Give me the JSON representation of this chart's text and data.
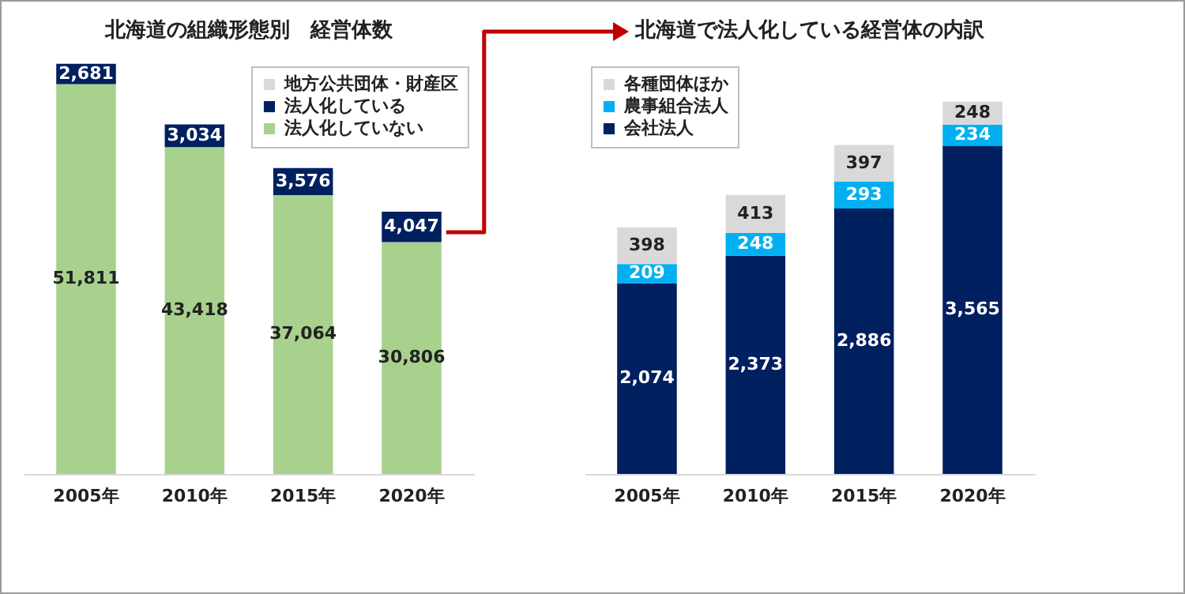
{
  "chart_data": [
    {
      "type": "bar",
      "title": "北海道の組織形態別　経営体数",
      "categories": [
        "2005年",
        "2010年",
        "2015年",
        "2020年"
      ],
      "stacked": true,
      "legend": "top right",
      "series": [
        {
          "name": "法人化していない",
          "color": "#a9d18e",
          "values": [
            51811,
            43418,
            37064,
            30806
          ],
          "value_labels": [
            "51,811",
            "43,418",
            "37,064",
            "30,806"
          ]
        },
        {
          "name": "法人化している",
          "color": "#002060",
          "values": [
            2681,
            3034,
            3576,
            4047
          ],
          "value_labels": [
            "2,681",
            "3,034",
            "3,576",
            "4,047"
          ]
        },
        {
          "name": "地方公共団体・財産区",
          "color": "#d9d9d9",
          "values": [
            null,
            null,
            null,
            null
          ]
        }
      ]
    },
    {
      "type": "bar",
      "title": "北海道で法人化している経営体の内訳",
      "categories": [
        "2005年",
        "2010年",
        "2015年",
        "2020年"
      ],
      "stacked": true,
      "legend": "top left",
      "series": [
        {
          "name": "会社法人",
          "color": "#002060",
          "values": [
            2074,
            2373,
            2886,
            3565
          ],
          "value_labels": [
            "2,074",
            "2,373",
            "2,886",
            "3,565"
          ]
        },
        {
          "name": "農事組合法人",
          "color": "#00b0f0",
          "values": [
            209,
            248,
            293,
            234
          ],
          "value_labels": [
            "209",
            "248",
            "293",
            "234"
          ]
        },
        {
          "name": "各種団体ほか",
          "color": "#d9d9d9",
          "values": [
            398,
            413,
            397,
            248
          ],
          "value_labels": [
            "398",
            "413",
            "397",
            "248"
          ]
        }
      ]
    }
  ]
}
